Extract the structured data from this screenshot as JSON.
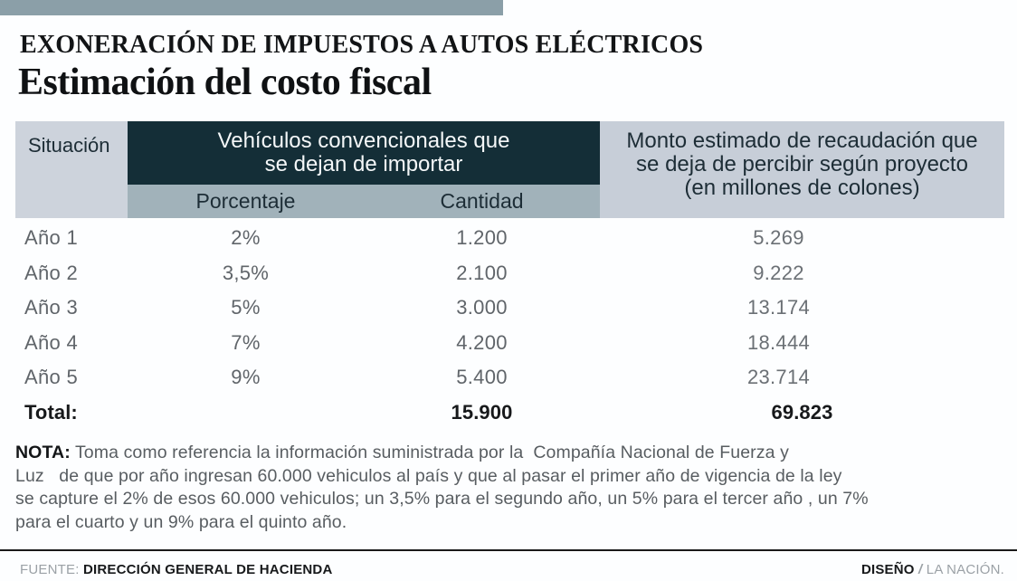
{
  "page": {
    "accent_bar_color": "#8b9fa8",
    "kicker": "EXONERACIÓN DE IMPUESTOS A AUTOS ELÉCTRICOS",
    "title": "Estimación del costo fiscal"
  },
  "table": {
    "colors": {
      "situacion_bg": "#cdd3dc",
      "group_header_bg": "#142e37",
      "group_header_text": "#f4f7f8",
      "subheader_bg": "#a1b2ba",
      "monto_bg": "#c7ced8",
      "header_text": "#1d2d36",
      "body_text": "#60656a",
      "total_text": "#17191b"
    },
    "header": {
      "situacion": "Situación",
      "group_line1": "Vehículos convencionales que",
      "group_line2": "se dejan de importar",
      "sub_porcentaje": "Porcentaje",
      "sub_cantidad": "Cantidad",
      "monto_line1": "Monto estimado de recaudación que",
      "monto_line2": "se deja de percibir según proyecto",
      "monto_line3": "(en millones de colones)"
    },
    "rows": [
      {
        "label": "Año 1",
        "porcentaje": "2%",
        "cantidad": "1.200",
        "monto": "5.269"
      },
      {
        "label": "Año 2",
        "porcentaje": "3,5%",
        "cantidad": "2.100",
        "monto": "9.222"
      },
      {
        "label": "Año 3",
        "porcentaje": "5%",
        "cantidad": "3.000",
        "monto": "13.174"
      },
      {
        "label": "Año 4",
        "porcentaje": "7%",
        "cantidad": "4.200",
        "monto": "18.444"
      },
      {
        "label": "Año 5",
        "porcentaje": "9%",
        "cantidad": "5.400",
        "monto": "23.714"
      }
    ],
    "total": {
      "label": "Total:",
      "porcentaje": "",
      "cantidad": "15.900",
      "monto": "69.823"
    }
  },
  "note": {
    "label": "NOTA:",
    "lines": [
      " Toma como referencia la información suministrada por la  Compañía Nacional de Fuerza y",
      "Luz   de que por año ingresan 60.000 vehiculos al país y que al pasar el primer año de vigencia de la ley",
      "se capture el 2% de esos 60.000 vehiculos; un 3,5% para el segundo año, un 5% para el tercer año , un 7%",
      "para el cuarto y un 9% para el quinto año."
    ]
  },
  "footer": {
    "source_label": "FUENTE:",
    "source_value": "DIRECCIÓN GENERAL DE HACIENDA",
    "design_label": "DISEÑO",
    "design_separator": "/",
    "design_value": "LA NACIÓN."
  },
  "chart_data": {
    "type": "table",
    "title": "Estimación del costo fiscal",
    "kicker": "EXONERACIÓN DE IMPUESTOS A AUTOS ELÉCTRICOS",
    "columns": [
      "Situación",
      "Porcentaje",
      "Cantidad",
      "Monto estimado de recaudación que se deja de percibir según proyecto (en millones de colones)"
    ],
    "column_groups": [
      {
        "label": "Vehículos convencionales que se dejan de importar",
        "spans": [
          "Porcentaje",
          "Cantidad"
        ]
      }
    ],
    "rows": [
      {
        "situacion": "Año 1",
        "porcentaje_pct": 2,
        "cantidad": 1200,
        "monto_millones": 5269
      },
      {
        "situacion": "Año 2",
        "porcentaje_pct": 3.5,
        "cantidad": 2100,
        "monto_millones": 9222
      },
      {
        "situacion": "Año 3",
        "porcentaje_pct": 5,
        "cantidad": 3000,
        "monto_millones": 13174
      },
      {
        "situacion": "Año 4",
        "porcentaje_pct": 7,
        "cantidad": 4200,
        "monto_millones": 18444
      },
      {
        "situacion": "Año 5",
        "porcentaje_pct": 9,
        "cantidad": 5400,
        "monto_millones": 23714
      }
    ],
    "total": {
      "situacion": "Total:",
      "cantidad": 15900,
      "monto_millones": 69823
    },
    "source": "DIRECCIÓN GENERAL DE HACIENDA"
  }
}
